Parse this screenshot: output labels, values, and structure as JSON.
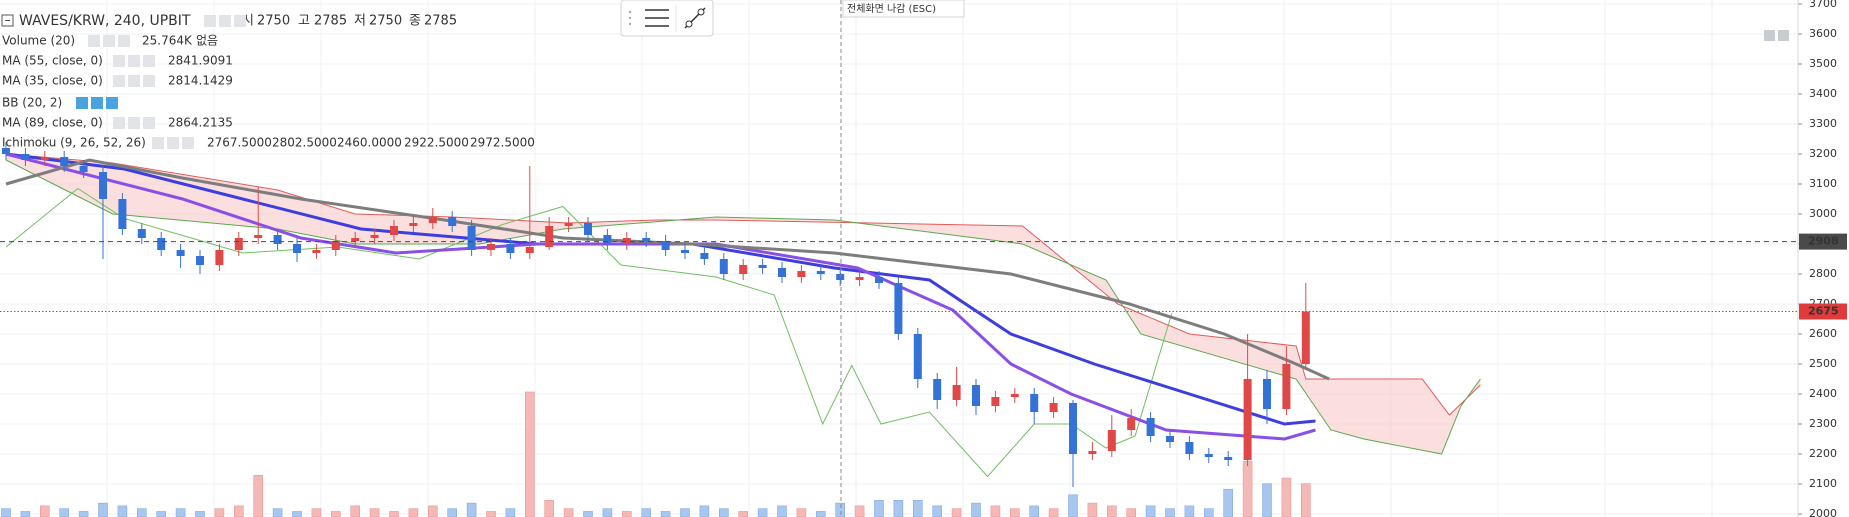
{
  "chart_data": {
    "type": "candlestick",
    "title": "WAVES/KRW, 240, UPBIT",
    "ohlc_readout": [
      {
        "label": "시",
        "value": 2750
      },
      {
        "label": "고",
        "value": 2785
      },
      {
        "label": "저",
        "value": 2750
      },
      {
        "label": "종",
        "value": 2785
      }
    ],
    "exit_fullscreen": "전체화면 나감 (ESC)",
    "ylim": [
      2000,
      3700
    ],
    "yticks": [
      2000,
      2100,
      2200,
      2300,
      2400,
      2500,
      2600,
      2700,
      2800,
      2900,
      3000,
      3100,
      3200,
      3300,
      3400,
      3500,
      3600,
      3700
    ],
    "grid": true,
    "up_color": "#e04848",
    "down_color": "#3572d6",
    "open": [
      3220,
      3200,
      3180,
      3190,
      3160,
      3140,
      3050,
      2950,
      2920,
      2880,
      2860,
      2830,
      2880,
      2920,
      2930,
      2900,
      2870,
      2880,
      2910,
      2920,
      2930,
      2960,
      2970,
      2990,
      2960,
      2880,
      2900,
      2870,
      2890,
      2960,
      2970,
      2930,
      2900,
      2920,
      2910,
      2880,
      2870,
      2850,
      2800,
      2830,
      2820,
      2790,
      2810,
      2800,
      2780,
      2790,
      2770,
      2600,
      2450,
      2380,
      2430,
      2360,
      2390,
      2400,
      2340,
      2370,
      2200,
      2210,
      2280,
      2320,
      2260,
      2240,
      2200,
      2190,
      2180,
      2450,
      2350,
      2500
    ],
    "high": [
      3240,
      3220,
      3210,
      3210,
      3180,
      3160,
      3070,
      2970,
      2940,
      2900,
      2880,
      2900,
      2940,
      3090,
      2950,
      2920,
      2900,
      2930,
      2940,
      2950,
      2980,
      3000,
      3020,
      3010,
      2980,
      2920,
      2920,
      3160,
      2990,
      2990,
      2990,
      2950,
      2940,
      2940,
      2930,
      2900,
      2890,
      2870,
      2850,
      2850,
      2840,
      2830,
      2830,
      2820,
      2810,
      2810,
      2790,
      2620,
      2470,
      2490,
      2450,
      2410,
      2420,
      2420,
      2390,
      2380,
      2240,
      2330,
      2350,
      2340,
      2280,
      2260,
      2220,
      2210,
      2600,
      2480,
      2560,
      2770
    ],
    "low": [
      3180,
      3160,
      3160,
      3140,
      3120,
      2850,
      2930,
      2900,
      2860,
      2820,
      2800,
      2810,
      2860,
      2900,
      2880,
      2840,
      2850,
      2860,
      2890,
      2900,
      2910,
      2940,
      2950,
      2940,
      2860,
      2860,
      2850,
      2850,
      2880,
      2940,
      2910,
      2880,
      2880,
      2890,
      2860,
      2850,
      2830,
      2780,
      2780,
      2800,
      2770,
      2770,
      2780,
      2760,
      2760,
      2750,
      2580,
      2420,
      2350,
      2360,
      2330,
      2340,
      2370,
      2300,
      2320,
      2090,
      2180,
      2190,
      2260,
      2240,
      2220,
      2180,
      2170,
      2160,
      2160,
      2300,
      2330,
      2480
    ],
    "close": [
      3200,
      3180,
      3190,
      3160,
      3140,
      3050,
      2950,
      2920,
      2880,
      2860,
      2830,
      2880,
      2920,
      2930,
      2900,
      2870,
      2880,
      2910,
      2920,
      2930,
      2960,
      2970,
      2990,
      2960,
      2880,
      2900,
      2870,
      2890,
      2960,
      2970,
      2930,
      2900,
      2920,
      2910,
      2880,
      2870,
      2850,
      2800,
      2830,
      2820,
      2790,
      2810,
      2800,
      2780,
      2790,
      2770,
      2600,
      2450,
      2380,
      2430,
      2360,
      2390,
      2400,
      2340,
      2370,
      2200,
      2210,
      2280,
      2320,
      2260,
      2240,
      2200,
      2190,
      2180,
      2450,
      2350,
      2500,
      2675
    ],
    "volume": {
      "name": "Volume (20)",
      "value_label": "25.764K",
      "extra": "없음",
      "values": [
        3,
        2,
        4,
        3,
        2,
        5,
        4,
        3,
        2,
        3,
        2,
        3,
        4,
        15,
        3,
        2,
        3,
        2,
        4,
        3,
        2,
        3,
        4,
        3,
        5,
        2,
        3,
        45,
        6,
        3,
        2,
        3,
        2,
        3,
        2,
        3,
        4,
        3,
        2,
        3,
        4,
        3,
        2,
        5,
        4,
        6,
        6,
        6,
        4,
        3,
        5,
        4,
        3,
        4,
        3,
        8,
        5,
        4,
        3,
        4,
        3,
        4,
        3,
        10,
        20,
        12,
        14,
        12
      ]
    },
    "series": [
      {
        "name": "MA (55, close, 0)",
        "last": 2841.9091,
        "color": "#3d3de0",
        "x": [
          0,
          6.1,
          12.2,
          18.3,
          27.4,
          35.4,
          42.7,
          47.6,
          51.8,
          56.1,
          61,
          65.9,
          67.5
        ],
        "values": [
          3200,
          3150,
          3050,
          2950,
          2900,
          2900,
          2820,
          2780,
          2600,
          2500,
          2400,
          2300,
          2310
        ]
      },
      {
        "name": "MA (35, close, 0)",
        "last": 2814.1429,
        "color": "#8a4fe6",
        "x": [
          0,
          9.1,
          15.2,
          20.1,
          27.4,
          36.6,
          43.9,
          48.8,
          51.8,
          54.9,
          59.8,
          65.9,
          67.5
        ],
        "values": [
          3200,
          3050,
          2920,
          2870,
          2900,
          2900,
          2820,
          2680,
          2500,
          2400,
          2280,
          2250,
          2280
        ]
      },
      {
        "name": "MA (89, close, 0)",
        "last": 2864.2135,
        "color": "#7d7d7d",
        "x": [
          0,
          4.3,
          9.1,
          15.2,
          22.6,
          28.7,
          35.4,
          42.7,
          51.8,
          57.9,
          62.8,
          66.5,
          68.2
        ],
        "values": [
          3100,
          3180,
          3120,
          3050,
          2980,
          2920,
          2900,
          2870,
          2800,
          2700,
          2600,
          2500,
          2450
        ]
      }
    ],
    "hidden_indicator": "BB (20, 2)",
    "ichimoku": {
      "name": "Ichimoku (9, 26, 52, 26)",
      "readout": [
        {
          "value": 2767.5,
          "label": "2767.5000",
          "color": "#2196f3"
        },
        {
          "value": 2802.5,
          "label": "2802.5000",
          "color": "#b71c1c"
        },
        {
          "value": 2460,
          "label": "2460.0000",
          "color": "#2e7d32"
        },
        {
          "value": 2922.5,
          "label": "2922.5000",
          "color": "#2e7d32"
        },
        {
          "value": 2972.5,
          "label": "2972.5000",
          "color": "#c62828"
        }
      ],
      "span_b": {
        "color": "#e25a5a",
        "x": [
          0,
          5.5,
          14,
          18,
          23,
          29,
          33.5,
          36.6,
          52.4,
          57.3,
          61,
          66.5,
          67,
          73,
          74.4,
          76
        ],
        "values": [
          3200,
          3170,
          3080,
          3000,
          2990,
          2970,
          2980,
          2980,
          2960,
          2700,
          2600,
          2560,
          2450,
          2450,
          2330,
          2430
        ]
      },
      "span_a": {
        "color": "#5aa84f",
        "x": [
          0,
          5.5,
          14,
          18,
          24.4,
          28.7,
          36.6,
          42.7,
          52.4,
          56.7,
          58.5,
          66.5,
          68.3,
          70,
          74,
          75,
          76
        ],
        "values": [
          3180,
          3000,
          2950,
          2900,
          2900,
          2950,
          2990,
          2980,
          2900,
          2780,
          2600,
          2450,
          2280,
          2250,
          2200,
          2360,
          2450
        ]
      },
      "lagging": {
        "color": "#6fbf5f",
        "x": [
          0,
          1.8,
          3.7,
          6.1,
          12.2,
          17.1,
          21.3,
          25.6,
          28.7,
          31.7,
          36.6,
          39.6,
          42.1,
          43.6,
          45.1,
          47.6,
          50.6,
          53,
          54.9,
          56.7,
          58.2,
          60.1
        ],
        "values": [
          2890,
          2985,
          3085,
          2985,
          2870,
          2890,
          2850,
          2965,
          3025,
          2830,
          2790,
          2730,
          2300,
          2495,
          2300,
          2340,
          2125,
          2300,
          2300,
          2220,
          2260,
          2670
        ]
      }
    },
    "price_lines": [
      {
        "value": 2908,
        "color": "#4a4a4a",
        "style": "dashed"
      },
      {
        "value": 2675,
        "color": "#e03b3b",
        "style": "dotted"
      }
    ]
  }
}
